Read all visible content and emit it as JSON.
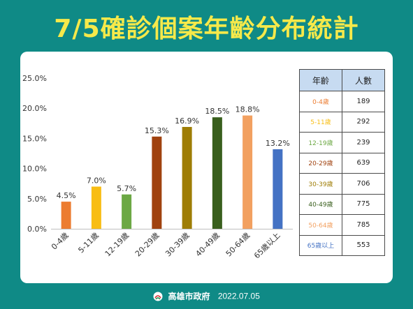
{
  "header": {
    "title": "7/5確診個案年齡分布統計"
  },
  "chart_data": {
    "type": "bar",
    "categories": [
      "0-4歲",
      "5-11歲",
      "12-19歲",
      "20-29歲",
      "30-39歲",
      "40-49歲",
      "50-64歲",
      "65歲以上"
    ],
    "values": [
      4.5,
      7.0,
      5.7,
      15.3,
      16.9,
      18.5,
      18.8,
      13.2
    ],
    "value_labels": [
      "4.5%",
      "7.0%",
      "5.7%",
      "15.3%",
      "16.9%",
      "18.5%",
      "18.8%",
      "13.2%"
    ],
    "colors": [
      "#ec7c30",
      "#f8bd14",
      "#6ca844",
      "#a0420f",
      "#9e7d05",
      "#395f1d",
      "#f2a060",
      "#4472c4"
    ],
    "ylim": [
      0,
      25
    ],
    "yticks": [
      "0.0%",
      "5.0%",
      "10.0%",
      "15.0%",
      "20.0%",
      "25.0%"
    ],
    "grid": false,
    "title": "",
    "xlabel": "",
    "ylabel": ""
  },
  "table": {
    "headers": [
      "年齡",
      "人數"
    ],
    "rows": [
      {
        "age": "0-4歲",
        "count": "189",
        "color": "#ec7c30"
      },
      {
        "age": "5-11歲",
        "count": "292",
        "color": "#f8bd14"
      },
      {
        "age": "12-19歲",
        "count": "239",
        "color": "#6ca844"
      },
      {
        "age": "20-29歲",
        "count": "639",
        "color": "#a0420f"
      },
      {
        "age": "30-39歲",
        "count": "706",
        "color": "#9e7d05"
      },
      {
        "age": "40-49歲",
        "count": "775",
        "color": "#395f1d"
      },
      {
        "age": "50-64歲",
        "count": "785",
        "color": "#f2a060"
      },
      {
        "age": "65歲以上",
        "count": "553",
        "color": "#4472c4"
      }
    ]
  },
  "footer": {
    "org": "高雄市政府",
    "date": "2022.07.05"
  }
}
